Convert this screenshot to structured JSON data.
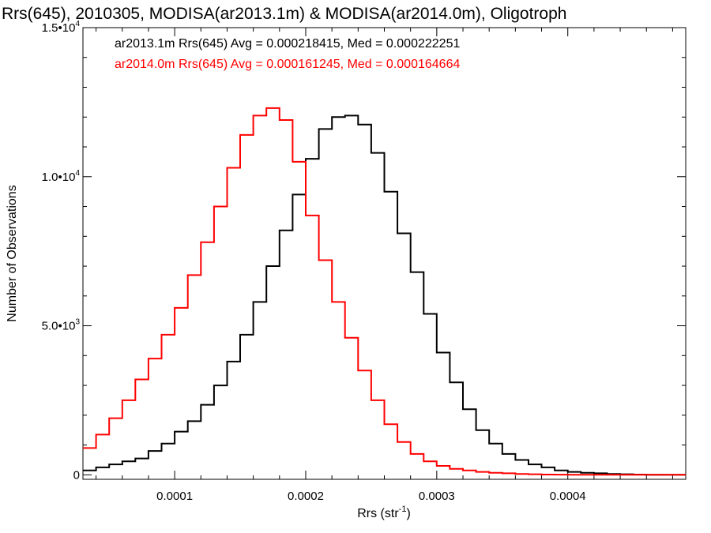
{
  "chart_data": {
    "type": "line",
    "title": "Rrs(645), 2010305, MODISA(ar2013.1m) & MODISA(ar2014.0m), Oligotroph",
    "xlabel": "Rrs (str",
    "xlabel_sup": "-1",
    "xlabel_end": ")",
    "ylabel": "Number of Observations",
    "xlim": [
      3e-05,
      0.00049
    ],
    "ylim": [
      -150,
      15000
    ],
    "x_ticks": [
      {
        "value": 0.0001,
        "label": "0.0001"
      },
      {
        "value": 0.0002,
        "label": "0.0002"
      },
      {
        "value": 0.0003,
        "label": "0.0003"
      },
      {
        "value": 0.0004,
        "label": "0.0004"
      }
    ],
    "y_ticks": [
      {
        "value": 0,
        "label": "0",
        "sup": ""
      },
      {
        "value": 5000,
        "label": "5.0•10",
        "sup": "3"
      },
      {
        "value": 10000,
        "label": "1.0•10",
        "sup": "4"
      },
      {
        "value": 15000,
        "label": "1.5•10",
        "sup": "4"
      }
    ],
    "legend": [
      {
        "text": "ar2013.1m Rrs(645) Avg = 0.000218415, Med = 0.000222251",
        "color": "#000000"
      },
      {
        "text": "ar2014.0m Rrs(645) Avg = 0.000161245, Med = 0.000164664",
        "color": "#ff0000"
      }
    ],
    "series": [
      {
        "color": "#000000",
        "x": [
          3e-05,
          4e-05,
          5e-05,
          6e-05,
          7e-05,
          8e-05,
          9e-05,
          0.0001,
          0.00011,
          0.00012,
          0.00013,
          0.00014,
          0.00015,
          0.00016,
          0.00017,
          0.00018,
          0.00019,
          0.0002,
          0.00021,
          0.00022,
          0.00023,
          0.00024,
          0.00025,
          0.00026,
          0.00027,
          0.00028,
          0.00029,
          0.0003,
          0.00031,
          0.00032,
          0.00033,
          0.00034,
          0.00035,
          0.00036,
          0.00037,
          0.00038,
          0.00039,
          0.0004,
          0.00041,
          0.00042,
          0.00043,
          0.00044,
          0.00045,
          0.00046,
          0.00047,
          0.00048,
          0.00049
        ],
        "y": [
          150,
          250,
          350,
          450,
          550,
          800,
          1050,
          1450,
          1800,
          2350,
          3000,
          3800,
          4700,
          5800,
          7000,
          8200,
          9400,
          10600,
          11600,
          12000,
          12050,
          11750,
          10800,
          9500,
          8100,
          6800,
          5400,
          4100,
          3100,
          2200,
          1500,
          1050,
          700,
          500,
          350,
          250,
          150,
          100,
          70,
          50,
          30,
          20,
          10,
          0,
          0,
          0,
          0
        ]
      },
      {
        "color": "#ff0000",
        "x": [
          3e-05,
          4e-05,
          5e-05,
          6e-05,
          7e-05,
          8e-05,
          9e-05,
          0.0001,
          0.00011,
          0.00012,
          0.00013,
          0.00014,
          0.00015,
          0.00016,
          0.00017,
          0.00018,
          0.00019,
          0.0002,
          0.00021,
          0.00022,
          0.00023,
          0.00024,
          0.00025,
          0.00026,
          0.00027,
          0.00028,
          0.00029,
          0.0003,
          0.00031,
          0.00032,
          0.00033,
          0.00034,
          0.00035,
          0.00036,
          0.00037,
          0.00038,
          0.00039,
          0.0004,
          0.00041,
          0.00042,
          0.00043,
          0.00044,
          0.00045,
          0.00046,
          0.00047,
          0.00048,
          0.00049
        ],
        "y": [
          900,
          1350,
          1900,
          2500,
          3200,
          3900,
          4700,
          5600,
          6700,
          7800,
          9000,
          10300,
          11400,
          12050,
          12300,
          11900,
          10500,
          8700,
          7200,
          5800,
          4600,
          3500,
          2500,
          1700,
          1100,
          700,
          450,
          300,
          200,
          150,
          100,
          70,
          50,
          30,
          20,
          10,
          5,
          0,
          0,
          0,
          0,
          0,
          0,
          0,
          0,
          0,
          0
        ]
      }
    ]
  }
}
